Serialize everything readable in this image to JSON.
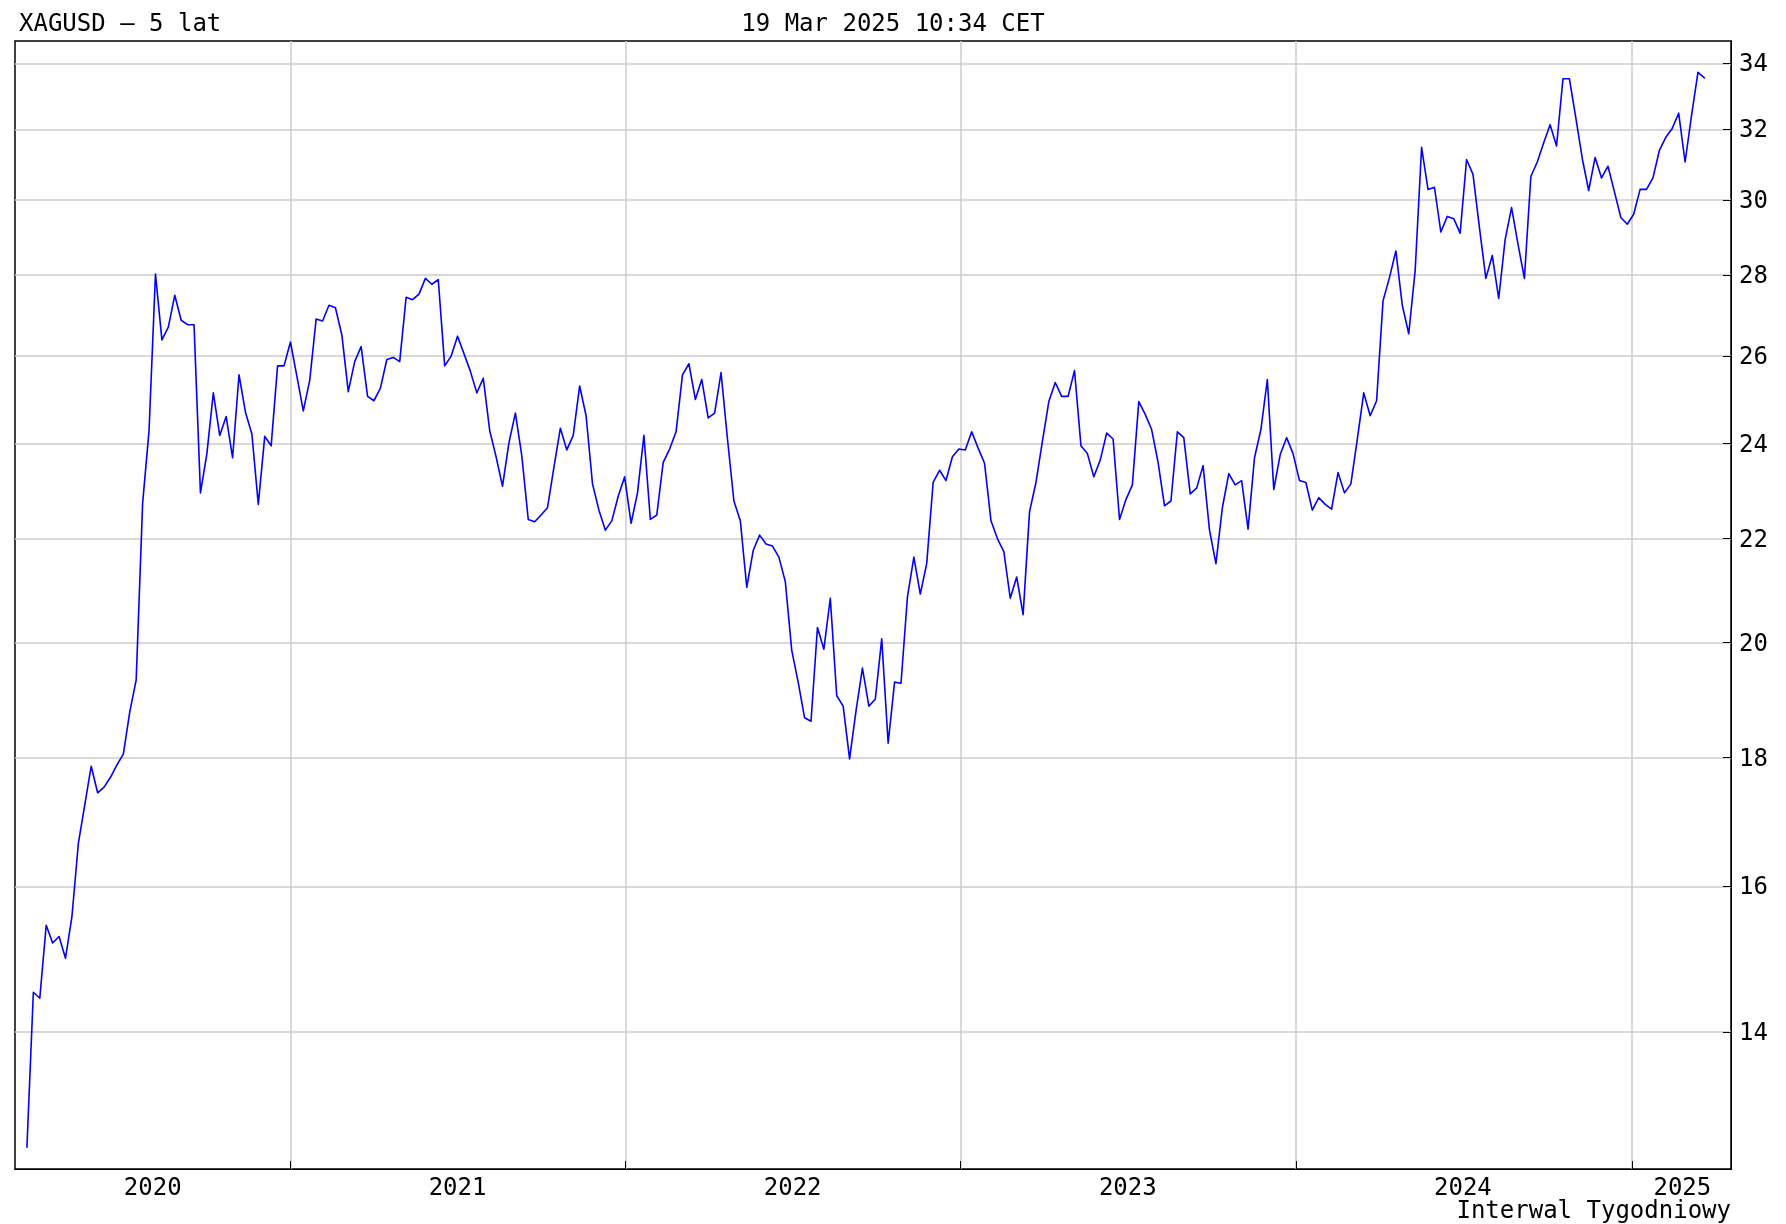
{
  "chart_data": {
    "type": "line",
    "title": "XAGUSD – 5 lat",
    "subtitle": "19 Mar 2025 10:34 CET",
    "annotations": [
      "Interwal Tygodniowy"
    ],
    "log": "y",
    "grid": true,
    "marker": "none",
    "line_style": "solid",
    "xlim": [
      "2020-03-07",
      "2025-04-19"
    ],
    "ylim": [
      12.35,
      34.7
    ],
    "xticks": [
      {
        "value": "2021-01-01",
        "label": null
      },
      {
        "value": "2022-01-01",
        "label": null
      },
      {
        "value": "2023-01-01",
        "label": null
      },
      {
        "value": "2024-01-01",
        "label": null
      },
      {
        "value": "2025-01-01",
        "label": null
      },
      {
        "value": "2020-08-04",
        "label": "2020"
      },
      {
        "value": "2021-07-02",
        "label": "2021"
      },
      {
        "value": "2022-07-02",
        "label": "2022"
      },
      {
        "value": "2023-07-02",
        "label": "2023"
      },
      {
        "value": "2024-07-01",
        "label": "2024"
      },
      {
        "value": "2025-02-25",
        "label": "2025"
      }
    ],
    "yticks": [
      14,
      16,
      18,
      20,
      22,
      24,
      26,
      28,
      30,
      32,
      34
    ],
    "series": [
      {
        "color": "#0000ff",
        "x": [
          "2020-03-20",
          "2020-03-27",
          "2020-04-03",
          "2020-04-10",
          "2020-04-17",
          "2020-04-24",
          "2020-05-01",
          "2020-05-08",
          "2020-05-15",
          "2020-05-22",
          "2020-05-29",
          "2020-06-05",
          "2020-06-12",
          "2020-06-19",
          "2020-06-26",
          "2020-07-03",
          "2020-07-10",
          "2020-07-17",
          "2020-07-24",
          "2020-07-31",
          "2020-08-07",
          "2020-08-14",
          "2020-08-21",
          "2020-08-28",
          "2020-09-04",
          "2020-09-11",
          "2020-09-18",
          "2020-09-25",
          "2020-10-02",
          "2020-10-09",
          "2020-10-16",
          "2020-10-23",
          "2020-10-30",
          "2020-11-06",
          "2020-11-13",
          "2020-11-20",
          "2020-11-27",
          "2020-12-04",
          "2020-12-11",
          "2020-12-18",
          "2020-12-25",
          "2021-01-01",
          "2021-01-08",
          "2021-01-15",
          "2021-01-22",
          "2021-01-29",
          "2021-02-05",
          "2021-02-12",
          "2021-02-19",
          "2021-02-26",
          "2021-03-05",
          "2021-03-12",
          "2021-03-19",
          "2021-03-26",
          "2021-04-02",
          "2021-04-09",
          "2021-04-16",
          "2021-04-23",
          "2021-04-30",
          "2021-05-07",
          "2021-05-14",
          "2021-05-21",
          "2021-05-28",
          "2021-06-04",
          "2021-06-11",
          "2021-06-18",
          "2021-06-25",
          "2021-07-02",
          "2021-07-09",
          "2021-07-16",
          "2021-07-23",
          "2021-07-30",
          "2021-08-06",
          "2021-08-13",
          "2021-08-20",
          "2021-08-27",
          "2021-09-03",
          "2021-09-10",
          "2021-09-17",
          "2021-09-24",
          "2021-10-01",
          "2021-10-08",
          "2021-10-15",
          "2021-10-22",
          "2021-10-29",
          "2021-11-05",
          "2021-11-12",
          "2021-11-19",
          "2021-11-26",
          "2021-12-03",
          "2021-12-10",
          "2021-12-17",
          "2021-12-24",
          "2021-12-31",
          "2022-01-07",
          "2022-01-14",
          "2022-01-21",
          "2022-01-28",
          "2022-02-04",
          "2022-02-11",
          "2022-02-18",
          "2022-02-25",
          "2022-03-04",
          "2022-03-11",
          "2022-03-18",
          "2022-03-25",
          "2022-04-01",
          "2022-04-08",
          "2022-04-15",
          "2022-04-22",
          "2022-04-29",
          "2022-05-06",
          "2022-05-13",
          "2022-05-20",
          "2022-05-27",
          "2022-06-03",
          "2022-06-10",
          "2022-06-17",
          "2022-06-24",
          "2022-07-01",
          "2022-07-08",
          "2022-07-15",
          "2022-07-22",
          "2022-07-29",
          "2022-08-05",
          "2022-08-12",
          "2022-08-19",
          "2022-08-26",
          "2022-09-02",
          "2022-09-09",
          "2022-09-16",
          "2022-09-23",
          "2022-09-30",
          "2022-10-07",
          "2022-10-14",
          "2022-10-21",
          "2022-10-28",
          "2022-11-04",
          "2022-11-11",
          "2022-11-18",
          "2022-11-25",
          "2022-12-02",
          "2022-12-09",
          "2022-12-16",
          "2022-12-23",
          "2022-12-30",
          "2023-01-06",
          "2023-01-13",
          "2023-01-20",
          "2023-01-27",
          "2023-02-03",
          "2023-02-10",
          "2023-02-17",
          "2023-02-24",
          "2023-03-03",
          "2023-03-10",
          "2023-03-17",
          "2023-03-24",
          "2023-03-31",
          "2023-04-07",
          "2023-04-14",
          "2023-04-21",
          "2023-04-28",
          "2023-05-05",
          "2023-05-12",
          "2023-05-19",
          "2023-05-26",
          "2023-06-02",
          "2023-06-09",
          "2023-06-16",
          "2023-06-23",
          "2023-06-30",
          "2023-07-07",
          "2023-07-14",
          "2023-07-21",
          "2023-07-28",
          "2023-08-04",
          "2023-08-11",
          "2023-08-18",
          "2023-08-25",
          "2023-09-01",
          "2023-09-08",
          "2023-09-15",
          "2023-09-22",
          "2023-09-29",
          "2023-10-06",
          "2023-10-13",
          "2023-10-20",
          "2023-10-27",
          "2023-11-03",
          "2023-11-10",
          "2023-11-17",
          "2023-11-24",
          "2023-12-01",
          "2023-12-08",
          "2023-12-15",
          "2023-12-22",
          "2023-12-29",
          "2024-01-05",
          "2024-01-12",
          "2024-01-19",
          "2024-01-26",
          "2024-02-02",
          "2024-02-09",
          "2024-02-16",
          "2024-02-23",
          "2024-03-01",
          "2024-03-08",
          "2024-03-15",
          "2024-03-22",
          "2024-03-29",
          "2024-04-05",
          "2024-04-12",
          "2024-04-19",
          "2024-04-26",
          "2024-05-03",
          "2024-05-10",
          "2024-05-17",
          "2024-05-24",
          "2024-05-31",
          "2024-06-07",
          "2024-06-14",
          "2024-06-21",
          "2024-06-28",
          "2024-07-05",
          "2024-07-12",
          "2024-07-19",
          "2024-07-26",
          "2024-08-02",
          "2024-08-09",
          "2024-08-16",
          "2024-08-23",
          "2024-08-30",
          "2024-09-06",
          "2024-09-13",
          "2024-09-20",
          "2024-09-27",
          "2024-10-04",
          "2024-10-11",
          "2024-10-18",
          "2024-10-25",
          "2024-11-01",
          "2024-11-08",
          "2024-11-15",
          "2024-11-22",
          "2024-11-29",
          "2024-12-06",
          "2024-12-13",
          "2024-12-20",
          "2024-12-27",
          "2025-01-03",
          "2025-01-10",
          "2025-01-17",
          "2025-01-24",
          "2025-01-31",
          "2025-02-07",
          "2025-02-14",
          "2025-02-21",
          "2025-02-28",
          "2025-03-07",
          "2025-03-14",
          "2025-03-21"
        ],
        "values": [
          12.6,
          14.52,
          14.44,
          15.44,
          15.19,
          15.28,
          14.98,
          15.56,
          16.64,
          17.24,
          17.86,
          17.43,
          17.52,
          17.68,
          17.88,
          18.06,
          18.77,
          19.33,
          22.72,
          24.29,
          28.03,
          26.39,
          26.7,
          27.49,
          26.87,
          26.76,
          26.76,
          22.94,
          23.78,
          25.14,
          24.18,
          24.6,
          23.69,
          25.56,
          24.7,
          24.21,
          22.7,
          24.16,
          23.95,
          25.77,
          25.77,
          26.34,
          25.53,
          24.73,
          25.43,
          26.9,
          26.85,
          27.24,
          27.18,
          26.51,
          25.17,
          25.87,
          26.23,
          25.06,
          24.96,
          25.25,
          25.92,
          25.97,
          25.87,
          27.44,
          27.38,
          27.52,
          27.92,
          27.77,
          27.89,
          25.77,
          26.0,
          26.48,
          26.06,
          25.64,
          25.14,
          25.48,
          24.29,
          23.71,
          23.08,
          24.02,
          24.68,
          23.73,
          22.39,
          22.34,
          22.48,
          22.63,
          23.49,
          24.34,
          23.86,
          24.18,
          25.3,
          24.62,
          23.13,
          22.58,
          22.17,
          22.36,
          22.87,
          23.28,
          22.31,
          22.94,
          24.18,
          22.39,
          22.48,
          23.59,
          23.88,
          24.26,
          25.56,
          25.82,
          24.99,
          25.45,
          24.57,
          24.68,
          25.61,
          24.1,
          22.77,
          22.36,
          21.04,
          21.76,
          22.07,
          21.89,
          21.85,
          21.63,
          21.15,
          19.86,
          19.29,
          18.67,
          18.61,
          20.28,
          19.88,
          20.83,
          19.05,
          18.87,
          17.98,
          18.79,
          19.54,
          18.87,
          18.99,
          20.07,
          18.24,
          19.29,
          19.27,
          20.85,
          21.63,
          20.91,
          21.5,
          23.16,
          23.42,
          23.2,
          23.71,
          23.88,
          23.86,
          24.26,
          23.9,
          23.57,
          22.36,
          22.0,
          21.74,
          20.83,
          21.24,
          20.52,
          22.55,
          23.16,
          24.05,
          24.94,
          25.38,
          25.06,
          25.06,
          25.66,
          23.95,
          23.78,
          23.28,
          23.64,
          24.23,
          24.1,
          22.39,
          22.8,
          23.11,
          24.94,
          24.65,
          24.31,
          23.59,
          22.67,
          22.77,
          24.26,
          24.13,
          22.92,
          23.04,
          23.52,
          22.17,
          21.5,
          22.63,
          23.35,
          23.11,
          23.2,
          22.19,
          23.69,
          24.31,
          25.45,
          23.01,
          23.76,
          24.13,
          23.78,
          23.2,
          23.16,
          22.58,
          22.84,
          22.7,
          22.6,
          23.37,
          22.94,
          23.13,
          24.1,
          25.14,
          24.62,
          24.96,
          27.35,
          27.94,
          28.63,
          27.24,
          26.54,
          28.12,
          31.48,
          30.29,
          30.35,
          29.13,
          29.55,
          29.49,
          29.1,
          31.13,
          30.71,
          29.25,
          27.92,
          28.51,
          27.41,
          28.93,
          29.79,
          28.81,
          27.92,
          30.65,
          31.06,
          31.61,
          32.14,
          31.52,
          33.52,
          33.52,
          32.34,
          31.16,
          30.26,
          31.19,
          30.61,
          30.94,
          30.23,
          29.52,
          29.34,
          29.61,
          30.29,
          30.29,
          30.61,
          31.39,
          31.77,
          32.03,
          32.48,
          31.06,
          32.41,
          33.72,
          33.55
        ]
      }
    ]
  }
}
